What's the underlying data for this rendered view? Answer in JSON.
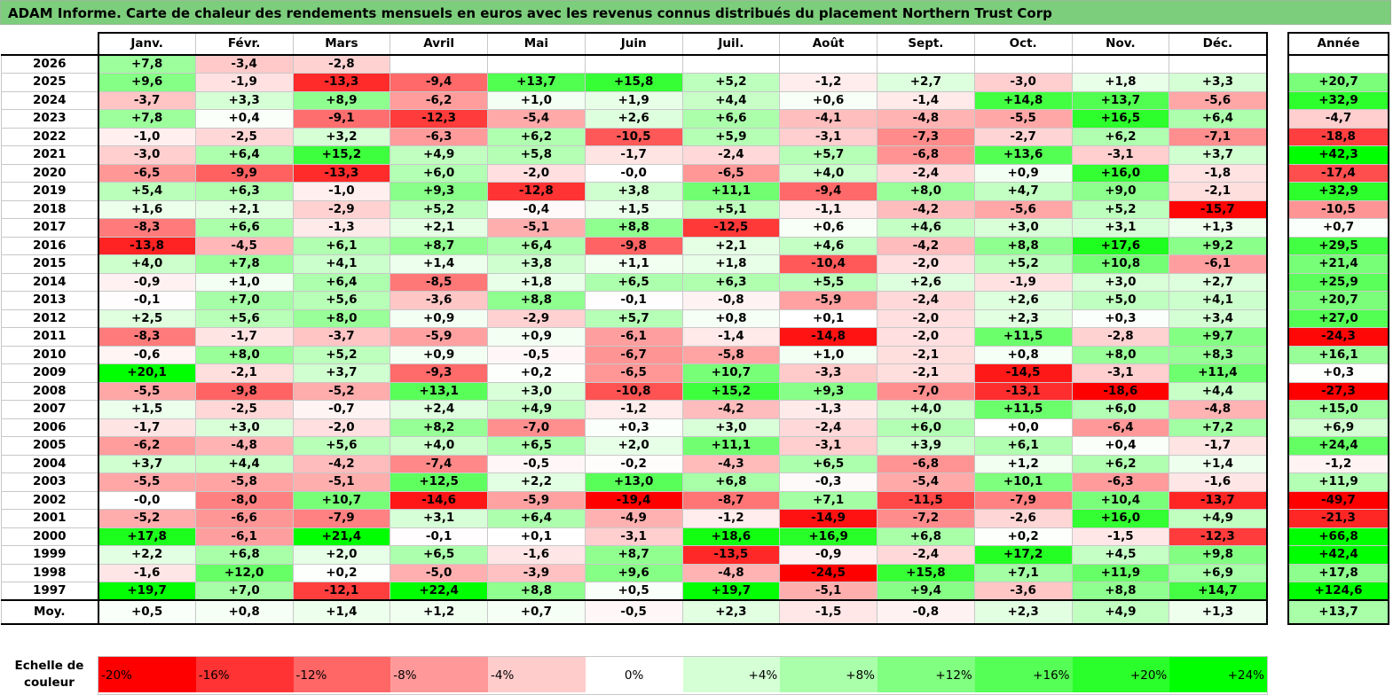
{
  "title": "ADAM Informe. Carte de chaleur des rendements mensuels en euros avec les revenus connus distribués du placement Northern Trust Corp",
  "chart_data": {
    "type": "heatmap",
    "columns": [
      "Janv.",
      "Févr.",
      "Mars",
      "Avril",
      "Mai",
      "Juin",
      "Juil.",
      "Août",
      "Sept.",
      "Oct.",
      "Nov.",
      "Déc."
    ],
    "year_header": "Année",
    "rows": [
      {
        "year": "2026",
        "months": [
          "+7,8",
          "-3,4",
          "-2,8",
          "",
          "",
          "",
          "",
          "",
          "",
          "",
          "",
          ""
        ],
        "total": ""
      },
      {
        "year": "2025",
        "months": [
          "+9,6",
          "-1,9",
          "-13,3",
          "-9,4",
          "+13,7",
          "+15,8",
          "+5,2",
          "-1,2",
          "+2,7",
          "-3,0",
          "+1,8",
          "+3,3"
        ],
        "total": "+20,7"
      },
      {
        "year": "2024",
        "months": [
          "-3,7",
          "+3,3",
          "+8,9",
          "-6,2",
          "+1,0",
          "+1,9",
          "+4,4",
          "+0,6",
          "-1,4",
          "+14,8",
          "+13,7",
          "-5,6"
        ],
        "total": "+32,9"
      },
      {
        "year": "2023",
        "months": [
          "+7,8",
          "+0,4",
          "-9,1",
          "-12,3",
          "-5,4",
          "+2,6",
          "+6,6",
          "-4,1",
          "-4,8",
          "-5,5",
          "+16,5",
          "+6,4"
        ],
        "total": "-4,7"
      },
      {
        "year": "2022",
        "months": [
          "-1,0",
          "-2,5",
          "+3,2",
          "-6,3",
          "+6,2",
          "-10,5",
          "+5,9",
          "-3,1",
          "-7,3",
          "-2,7",
          "+6,2",
          "-7,1"
        ],
        "total": "-18,8"
      },
      {
        "year": "2021",
        "months": [
          "-3,0",
          "+6,4",
          "+15,2",
          "+4,9",
          "+5,8",
          "-1,7",
          "-2,4",
          "+5,7",
          "-6,8",
          "+13,6",
          "-3,1",
          "+3,7"
        ],
        "total": "+42,3"
      },
      {
        "year": "2020",
        "months": [
          "-6,5",
          "-9,9",
          "-13,3",
          "+6,0",
          "-2,0",
          "-0,0",
          "-6,5",
          "+4,0",
          "-2,4",
          "+0,9",
          "+16,0",
          "-1,8"
        ],
        "total": "-17,4"
      },
      {
        "year": "2019",
        "months": [
          "+5,4",
          "+6,3",
          "-1,0",
          "+9,3",
          "-12,8",
          "+3,8",
          "+11,1",
          "-9,4",
          "+8,0",
          "+4,7",
          "+9,0",
          "-2,1"
        ],
        "total": "+32,9"
      },
      {
        "year": "2018",
        "months": [
          "+1,6",
          "+2,1",
          "-2,9",
          "+5,2",
          "-0,4",
          "+1,5",
          "+5,1",
          "-1,1",
          "-4,2",
          "-5,6",
          "+5,2",
          "-15,7"
        ],
        "total": "-10,5"
      },
      {
        "year": "2017",
        "months": [
          "-8,3",
          "+6,6",
          "-1,3",
          "+2,1",
          "-5,1",
          "+8,8",
          "-12,5",
          "+0,6",
          "+4,6",
          "+3,0",
          "+3,1",
          "+1,3"
        ],
        "total": "+0,7"
      },
      {
        "year": "2016",
        "months": [
          "-13,8",
          "-4,5",
          "+6,1",
          "+8,7",
          "+6,4",
          "-9,8",
          "+2,1",
          "+4,6",
          "-4,2",
          "+8,8",
          "+17,6",
          "+9,2"
        ],
        "total": "+29,5"
      },
      {
        "year": "2015",
        "months": [
          "+4,0",
          "+7,8",
          "+4,1",
          "+1,4",
          "+3,8",
          "+1,1",
          "+1,8",
          "-10,4",
          "-2,0",
          "+5,2",
          "+10,8",
          "-6,1"
        ],
        "total": "+21,4"
      },
      {
        "year": "2014",
        "months": [
          "-0,9",
          "+1,0",
          "+6,4",
          "-8,5",
          "+1,8",
          "+6,5",
          "+6,3",
          "+5,5",
          "+2,6",
          "-1,9",
          "+3,0",
          "+2,7"
        ],
        "total": "+25,9"
      },
      {
        "year": "2013",
        "months": [
          "-0,1",
          "+7,0",
          "+5,6",
          "-3,6",
          "+8,8",
          "-0,1",
          "-0,8",
          "-5,9",
          "-2,4",
          "+2,6",
          "+5,0",
          "+4,1"
        ],
        "total": "+20,7"
      },
      {
        "year": "2012",
        "months": [
          "+2,5",
          "+5,6",
          "+8,0",
          "+0,9",
          "-2,9",
          "+5,7",
          "+0,8",
          "+0,1",
          "-2,0",
          "+2,3",
          "+0,3",
          "+3,4"
        ],
        "total": "+27,0"
      },
      {
        "year": "2011",
        "months": [
          "-8,3",
          "-1,7",
          "-3,7",
          "-5,9",
          "+0,9",
          "-6,1",
          "-1,4",
          "-14,8",
          "-2,0",
          "+11,5",
          "-2,8",
          "+9,7"
        ],
        "total": "-24,3"
      },
      {
        "year": "2010",
        "months": [
          "-0,6",
          "+8,0",
          "+5,2",
          "+0,9",
          "-0,5",
          "-6,7",
          "-5,8",
          "+1,0",
          "-2,1",
          "+0,8",
          "+8,0",
          "+8,3"
        ],
        "total": "+16,1"
      },
      {
        "year": "2009",
        "months": [
          "+20,1",
          "-2,1",
          "+3,7",
          "-9,3",
          "+0,2",
          "-6,5",
          "+10,7",
          "-3,3",
          "-2,1",
          "-14,5",
          "-3,1",
          "+11,4"
        ],
        "total": "+0,3"
      },
      {
        "year": "2008",
        "months": [
          "-5,5",
          "-9,8",
          "-5,2",
          "+13,1",
          "+3,0",
          "-10,8",
          "+15,2",
          "+9,3",
          "-7,0",
          "-13,1",
          "-18,6",
          "+4,4"
        ],
        "total": "-27,3"
      },
      {
        "year": "2007",
        "months": [
          "+1,5",
          "-2,5",
          "-0,7",
          "+2,4",
          "+4,9",
          "-1,2",
          "-4,2",
          "-1,3",
          "+4,0",
          "+11,5",
          "+6,0",
          "-4,8"
        ],
        "total": "+15,0"
      },
      {
        "year": "2006",
        "months": [
          "-1,7",
          "+3,0",
          "-2,0",
          "+8,2",
          "-7,0",
          "+0,3",
          "+3,0",
          "-2,4",
          "+6,0",
          "+0,0",
          "-6,4",
          "+7,2"
        ],
        "total": "+6,9"
      },
      {
        "year": "2005",
        "months": [
          "-6,2",
          "-4,8",
          "+5,6",
          "+4,0",
          "+6,5",
          "+2,0",
          "+11,1",
          "-3,1",
          "+3,9",
          "+6,1",
          "+0,4",
          "-1,7"
        ],
        "total": "+24,4"
      },
      {
        "year": "2004",
        "months": [
          "+3,7",
          "+4,4",
          "-4,2",
          "-7,4",
          "-0,5",
          "-0,2",
          "-4,3",
          "+6,5",
          "-6,8",
          "+1,2",
          "+6,2",
          "+1,4"
        ],
        "total": "-1,2"
      },
      {
        "year": "2003",
        "months": [
          "-5,5",
          "-5,8",
          "-5,1",
          "+12,5",
          "+2,2",
          "+13,0",
          "+6,8",
          "-0,3",
          "-5,4",
          "+10,1",
          "-6,3",
          "-1,6"
        ],
        "total": "+11,9"
      },
      {
        "year": "2002",
        "months": [
          "-0,0",
          "-8,0",
          "+10,7",
          "-14,6",
          "-5,9",
          "-19,4",
          "-8,7",
          "+7,1",
          "-11,5",
          "-7,9",
          "+10,4",
          "-13,7"
        ],
        "total": "-49,7"
      },
      {
        "year": "2001",
        "months": [
          "-5,2",
          "-6,6",
          "-7,9",
          "+3,1",
          "+6,4",
          "-4,9",
          "-1,2",
          "-14,9",
          "-7,2",
          "-2,6",
          "+16,0",
          "+4,9"
        ],
        "total": "-21,3"
      },
      {
        "year": "2000",
        "months": [
          "+17,8",
          "-6,1",
          "+21,4",
          "-0,1",
          "+0,1",
          "-3,1",
          "+18,6",
          "+16,9",
          "+6,8",
          "+0,2",
          "-1,5",
          "-12,3"
        ],
        "total": "+66,8"
      },
      {
        "year": "1999",
        "months": [
          "+2,2",
          "+6,8",
          "+2,0",
          "+6,5",
          "-1,6",
          "+8,7",
          "-13,5",
          "-0,9",
          "-2,4",
          "+17,2",
          "+4,5",
          "+9,8"
        ],
        "total": "+42,4"
      },
      {
        "year": "1998",
        "months": [
          "-1,6",
          "+12,0",
          "+0,2",
          "-5,0",
          "-3,9",
          "+9,6",
          "-4,8",
          "-24,5",
          "+15,8",
          "+7,1",
          "+11,9",
          "+6,9"
        ],
        "total": "+17,8"
      },
      {
        "year": "1997",
        "months": [
          "+19,7",
          "+7,0",
          "-12,1",
          "+22,4",
          "+8,8",
          "+0,5",
          "+19,7",
          "-5,1",
          "+9,4",
          "-3,6",
          "+8,8",
          "+14,7"
        ],
        "total": "+124,6"
      }
    ],
    "average": {
      "label": "Moy.",
      "months": [
        "+0,5",
        "+0,8",
        "+1,4",
        "+1,2",
        "+0,7",
        "-0,5",
        "+2,3",
        "-1,5",
        "-0,8",
        "+2,3",
        "+4,9",
        "+1,3"
      ],
      "total": "+13,7"
    },
    "scale": {
      "label": "Echelle de couleur",
      "stops": [
        "-20%",
        "-16%",
        "-12%",
        "-8%",
        "-4%",
        "0%",
        "+4%",
        "+8%",
        "+12%",
        "+16%",
        "+20%",
        "+24%"
      ],
      "values": [
        -20,
        -16,
        -12,
        -8,
        -4,
        0,
        4,
        8,
        12,
        16,
        20,
        24
      ]
    },
    "colors": {
      "negative": "#ff0000",
      "neutral": "#ffffff",
      "positive": "#00ff00"
    }
  }
}
